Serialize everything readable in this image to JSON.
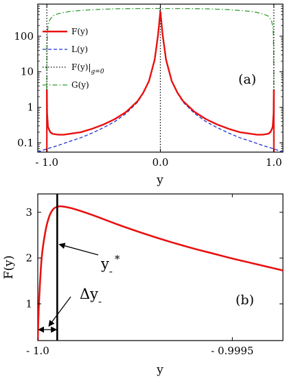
{
  "chart_data": [
    {
      "panel": "(a)",
      "type": "line",
      "xlabel": "y",
      "ylabel": "",
      "xlim": [
        -1.08,
        1.08
      ],
      "ylim": [
        0.055,
        800
      ],
      "yscale": "log",
      "grid": false,
      "legend_position": "top-left",
      "xticks": [
        -1.0,
        0.0,
        1.0
      ],
      "xtick_labels": [
        "- 1.0",
        "0.0",
        "1.0"
      ],
      "yticks": [
        0.1,
        1,
        10,
        100
      ],
      "ytick_labels": [
        "0.1",
        "1",
        "10",
        "100"
      ],
      "series": [
        {
          "name": "F(y)",
          "color": "#e8110f",
          "style": "solid",
          "x": [
            -1.0,
            -0.998,
            -0.99,
            -0.97,
            -0.95,
            -0.9,
            -0.85,
            -0.8,
            -0.7,
            -0.6,
            -0.5,
            -0.4,
            -0.3,
            -0.2,
            -0.15,
            -0.1,
            -0.05,
            -0.02,
            0.0,
            0.02,
            0.05,
            0.1,
            0.15,
            0.2,
            0.3,
            0.4,
            0.5,
            0.6,
            0.7,
            0.8,
            0.85,
            0.9,
            0.95,
            0.97,
            0.99,
            0.998,
            1.0
          ],
          "y": [
            3.1,
            0.7,
            0.28,
            0.2,
            0.18,
            0.17,
            0.17,
            0.18,
            0.2,
            0.25,
            0.33,
            0.47,
            0.75,
            1.5,
            2.6,
            5.5,
            22,
            110,
            500,
            110,
            22,
            5.5,
            2.6,
            1.5,
            0.75,
            0.47,
            0.33,
            0.25,
            0.2,
            0.18,
            0.17,
            0.17,
            0.18,
            0.2,
            0.28,
            0.7,
            3.1
          ]
        },
        {
          "name": "L(y)",
          "color": "#1a2fd6",
          "style": "dashed",
          "x": [
            -1.08,
            -1.0,
            -0.9,
            -0.8,
            -0.7,
            -0.6,
            -0.5,
            -0.4,
            -0.3,
            -0.2,
            -0.15,
            -0.1,
            -0.05,
            -0.02,
            0.0,
            0.02,
            0.05,
            0.1,
            0.15,
            0.2,
            0.3,
            0.4,
            0.5,
            0.6,
            0.7,
            0.8,
            0.9,
            1.0,
            1.08
          ],
          "y": [
            0.055,
            0.068,
            0.085,
            0.11,
            0.14,
            0.19,
            0.27,
            0.4,
            0.68,
            1.4,
            2.5,
            5.3,
            21,
            105,
            480,
            105,
            21,
            5.3,
            2.5,
            1.4,
            0.68,
            0.4,
            0.27,
            0.19,
            0.14,
            0.11,
            0.085,
            0.068,
            0.055
          ]
        },
        {
          "name": "F(y)|_{g=0}",
          "color": "#000000",
          "style": "dotted",
          "x": [
            -0.998,
            -0.99,
            -0.97,
            -0.95,
            -0.9,
            -0.85,
            -0.8,
            -0.7,
            -0.6,
            -0.5,
            -0.4,
            -0.3,
            -0.2,
            -0.15,
            -0.1,
            -0.05,
            -0.02,
            0.0,
            0.02,
            0.05,
            0.1,
            0.15,
            0.2,
            0.3,
            0.4,
            0.5,
            0.6,
            0.7,
            0.8,
            0.85,
            0.9,
            0.95,
            0.97,
            0.99,
            0.998
          ],
          "y": [
            0.75,
            0.3,
            0.21,
            0.185,
            0.172,
            0.172,
            0.18,
            0.2,
            0.25,
            0.33,
            0.47,
            0.75,
            1.5,
            2.6,
            5.5,
            22,
            110,
            700,
            110,
            22,
            5.5,
            2.6,
            1.5,
            0.75,
            0.47,
            0.33,
            0.25,
            0.2,
            0.18,
            0.172,
            0.172,
            0.185,
            0.21,
            0.3,
            0.75
          ],
          "vertical_asymptotes": [
            -1.0,
            0.0,
            1.0
          ]
        },
        {
          "name": "G(y)",
          "color": "#2e9c2e",
          "style": "dashdot",
          "x": [
            -1.0,
            -0.999,
            -0.995,
            -0.99,
            -0.98,
            -0.95,
            -0.9,
            -0.8,
            -0.6,
            -0.4,
            -0.2,
            0.0,
            0.2,
            0.4,
            0.6,
            0.8,
            0.9,
            0.95,
            0.98,
            0.99,
            0.995,
            0.999,
            1.0
          ],
          "y": [
            3.0,
            40,
            120,
            190,
            270,
            370,
            430,
            500,
            560,
            590,
            600,
            600,
            600,
            590,
            560,
            500,
            430,
            370,
            270,
            190,
            120,
            40,
            3.0
          ]
        }
      ]
    },
    {
      "panel": "(b)",
      "type": "line",
      "xlabel": "y",
      "ylabel": "F(y)",
      "xlim": [
        -1.0,
        -0.99937
      ],
      "ylim": [
        0.2,
        3.4
      ],
      "grid": false,
      "xticks": [
        -1.0,
        -0.9995
      ],
      "xtick_labels": [
        "- 1.0",
        "- 0.9995"
      ],
      "yticks": [
        1,
        2,
        3
      ],
      "ytick_labels": [
        "1",
        "2",
        "3"
      ],
      "series": [
        {
          "name": "F(y)",
          "color": "#e8110f",
          "style": "solid",
          "x": [
            -1.0,
            -0.999997,
            -0.99999,
            -0.99998,
            -0.99997,
            -0.99996,
            -0.99995,
            -0.99994,
            -0.999925,
            -0.99991,
            -0.99988,
            -0.99985,
            -0.9998,
            -0.99975,
            -0.9997,
            -0.99965,
            -0.9996,
            -0.99955,
            -0.9995,
            -0.99945,
            -0.9994,
            -0.99937
          ],
          "y": [
            0.2,
            1.0,
            2.0,
            2.6,
            2.92,
            3.07,
            3.12,
            3.13,
            3.11,
            3.08,
            3.0,
            2.91,
            2.75,
            2.6,
            2.46,
            2.33,
            2.21,
            2.1,
            1.99,
            1.89,
            1.79,
            1.73
          ]
        }
      ],
      "markers": [
        {
          "type": "vline",
          "x": -0.99995
        }
      ],
      "annotations": [
        {
          "text": "y",
          "subscript": "-",
          "superscript": "*",
          "arrow_to_x": -0.99995,
          "arrow_to_y": 2.3
        },
        {
          "text": "Δy",
          "subscript": "-",
          "span": [
            -1.0,
            -0.99995
          ]
        }
      ]
    }
  ]
}
